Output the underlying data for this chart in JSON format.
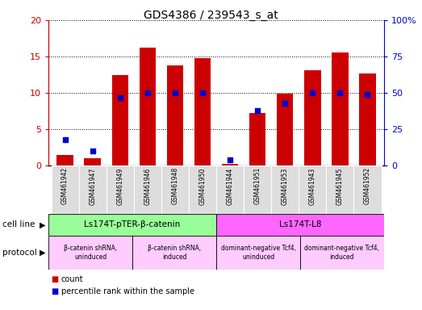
{
  "title": "GDS4386 / 239543_s_at",
  "samples": [
    "GSM461942",
    "GSM461947",
    "GSM461949",
    "GSM461946",
    "GSM461948",
    "GSM461950",
    "GSM461944",
    "GSM461951",
    "GSM461953",
    "GSM461943",
    "GSM461945",
    "GSM461952"
  ],
  "counts": [
    1.5,
    1.0,
    12.5,
    16.2,
    13.8,
    14.8,
    0.3,
    7.2,
    9.9,
    13.1,
    15.6,
    12.7
  ],
  "percentiles": [
    18,
    10,
    47,
    50,
    50,
    50,
    4,
    38,
    43,
    50,
    50,
    49
  ],
  "ylim_left": [
    0,
    20
  ],
  "ylim_right": [
    0,
    100
  ],
  "yticks_left": [
    0,
    5,
    10,
    15,
    20
  ],
  "yticks_right": [
    0,
    25,
    50,
    75,
    100
  ],
  "yticklabels_left": [
    "0",
    "5",
    "10",
    "15",
    "20"
  ],
  "yticklabels_right": [
    "0",
    "25",
    "50",
    "75",
    "100%"
  ],
  "bar_color": "#cc0000",
  "dot_color": "#0000cc",
  "cell_line_groups": [
    {
      "label": "Ls174T-pTER-β-catenin",
      "start": 0,
      "end": 6,
      "color": "#99ff99"
    },
    {
      "label": "Ls174T-L8",
      "start": 6,
      "end": 12,
      "color": "#ff66ff"
    }
  ],
  "protocol_groups": [
    {
      "label": "β-catenin shRNA,\nuninduced",
      "start": 0,
      "end": 3,
      "color": "#ffccff"
    },
    {
      "label": "β-catenin shRNA,\ninduced",
      "start": 3,
      "end": 6,
      "color": "#ffccff"
    },
    {
      "label": "dominant-negative Tcf4,\nuninduced",
      "start": 6,
      "end": 9,
      "color": "#ffccff"
    },
    {
      "label": "dominant-negative Tcf4,\ninduced",
      "start": 9,
      "end": 12,
      "color": "#ffccff"
    }
  ],
  "legend_items": [
    {
      "label": "count",
      "color": "#cc0000"
    },
    {
      "label": "percentile rank within the sample",
      "color": "#0000cc"
    }
  ],
  "tick_color_left": "#cc0000",
  "tick_color_right": "#0000cc",
  "sample_bg_color": "#dddddd",
  "figure_width": 5.23,
  "figure_height": 3.84
}
